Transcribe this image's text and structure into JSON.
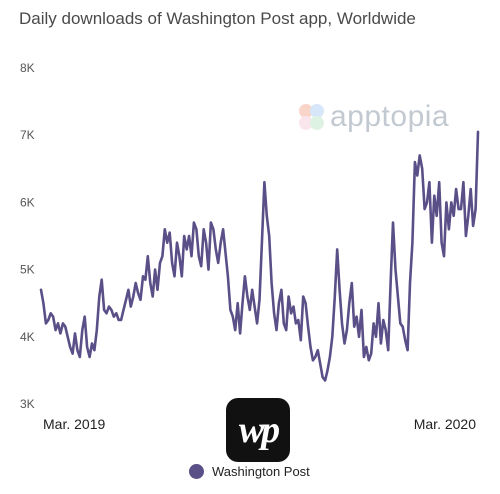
{
  "colors": {
    "series": "#5b4f87",
    "watermark_petals": [
      "#f3a48a",
      "#a8c8f0",
      "#b7e3c4",
      "#f5c6d8"
    ]
  },
  "watermark": {
    "text": "apptopia"
  },
  "app_icon": {
    "text": "wp"
  },
  "chart_data": {
    "type": "line",
    "title": "Daily downloads of Washington Post app, Worldwide",
    "xlabel": "",
    "ylabel": "",
    "y_ticks": [
      "3K",
      "4K",
      "5K",
      "6K",
      "7K",
      "8K"
    ],
    "x_ticks": [
      "Mar. 2019",
      "Mar. 2020"
    ],
    "ylim": [
      3000,
      8000
    ],
    "grid": false,
    "legend_position": "bottom-center",
    "series": [
      {
        "name": "Washington Post",
        "values": [
          4700,
          4500,
          4200,
          4250,
          4350,
          4300,
          4100,
          4200,
          4050,
          4200,
          4150,
          4000,
          3850,
          3750,
          4050,
          3800,
          3700,
          4100,
          4300,
          3850,
          3700,
          3900,
          3800,
          4100,
          4600,
          4850,
          4400,
          4350,
          4450,
          4400,
          4300,
          4350,
          4250,
          4250,
          4400,
          4550,
          4700,
          4450,
          4600,
          4800,
          4650,
          4550,
          4900,
          4850,
          5200,
          4800,
          4600,
          5000,
          4700,
          5100,
          5200,
          5600,
          5400,
          5550,
          5100,
          4900,
          5400,
          5200,
          4900,
          5500,
          5300,
          5500,
          5200,
          5700,
          5600,
          5200,
          5050,
          5600,
          5400,
          5000,
          5700,
          5600,
          5300,
          5100,
          5400,
          5600,
          5250,
          4900,
          4400,
          4300,
          4100,
          4500,
          4050,
          4500,
          4900,
          4600,
          4400,
          4700,
          4450,
          4200,
          4550,
          5400,
          6300,
          5800,
          5500,
          4800,
          4350,
          4100,
          4500,
          4700,
          4200,
          4100,
          4600,
          4350,
          4450,
          4200,
          4250,
          3950,
          4600,
          4500,
          4150,
          3850,
          3650,
          3700,
          3800,
          3600,
          3400,
          3350,
          3500,
          3700,
          4000,
          4600,
          5300,
          4700,
          4200,
          3900,
          4100,
          4500,
          4800,
          4150,
          4300,
          4000,
          4400,
          3700,
          3850,
          3650,
          3750,
          4200,
          4000,
          4500,
          3900,
          4250,
          4100,
          3800,
          4800,
          5700,
          5000,
          4600,
          4200,
          4150,
          3950,
          3800,
          4800,
          5400,
          6600,
          6400,
          6700,
          6500,
          5900,
          6000,
          6300,
          5400,
          6100,
          5800,
          6300,
          5400,
          5200,
          6000,
          5600,
          6000,
          5800,
          6200,
          5900,
          5900,
          6300,
          5500,
          5800,
          6200,
          5650,
          5900,
          7050
        ]
      }
    ]
  }
}
